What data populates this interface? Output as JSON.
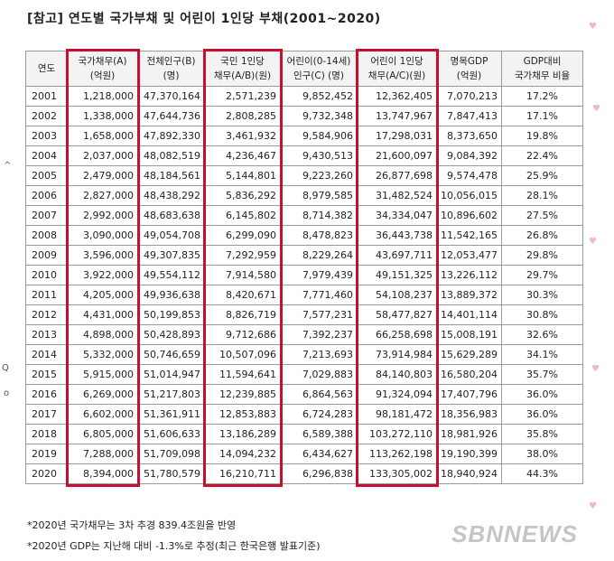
{
  "title": "[참고] 연도별 국가부채 및 어린이 1인당 부채(2001~2020)",
  "table": {
    "headers": [
      [
        "연도",
        ""
      ],
      [
        "국가채무(A)",
        "(억원)"
      ],
      [
        "전체인구(B)",
        "(명)"
      ],
      [
        "국민 1인당",
        "채무(A/B)(원)"
      ],
      [
        "어린이(0-14세)",
        "인구(C) (명)"
      ],
      [
        "어린이 1인당",
        "채무(A/C)(원)"
      ],
      [
        "명목GDP",
        "(억원)"
      ],
      [
        "GDP대비",
        "국가채무 비율"
      ]
    ],
    "rows": [
      [
        "2001",
        "1,218,000",
        "47,370,164",
        "2,571,239",
        "9,852,452",
        "12,362,405",
        "7,070,213",
        "17.2%"
      ],
      [
        "2002",
        "1,338,000",
        "47,644,736",
        "2,808,285",
        "9,732,348",
        "13,747,967",
        "7,847,413",
        "17.1%"
      ],
      [
        "2003",
        "1,658,000",
        "47,892,330",
        "3,461,932",
        "9,584,906",
        "17,298,031",
        "8,373,650",
        "19.8%"
      ],
      [
        "2004",
        "2,037,000",
        "48,082,519",
        "4,236,467",
        "9,430,513",
        "21,600,097",
        "9,084,392",
        "22.4%"
      ],
      [
        "2005",
        "2,479,000",
        "48,184,561",
        "5,144,801",
        "9,223,260",
        "26,877,698",
        "9,574,478",
        "25.9%"
      ],
      [
        "2006",
        "2,827,000",
        "48,438,292",
        "5,836,292",
        "8,979,585",
        "31,482,524",
        "10,056,015",
        "28.1%"
      ],
      [
        "2007",
        "2,992,000",
        "48,683,638",
        "6,145,802",
        "8,714,382",
        "34,334,047",
        "10,896,602",
        "27.5%"
      ],
      [
        "2008",
        "3,090,000",
        "49,054,708",
        "6,299,090",
        "8,478,823",
        "36,443,738",
        "11,542,165",
        "26.8%"
      ],
      [
        "2009",
        "3,596,000",
        "49,307,835",
        "7,292,959",
        "8,229,264",
        "43,697,711",
        "12,053,477",
        "29.8%"
      ],
      [
        "2010",
        "3,922,000",
        "49,554,112",
        "7,914,580",
        "7,979,439",
        "49,151,325",
        "13,226,112",
        "29.7%"
      ],
      [
        "2011",
        "4,205,000",
        "49,936,638",
        "8,420,671",
        "7,771,460",
        "54,108,237",
        "13,889,372",
        "30.3%"
      ],
      [
        "2012",
        "4,431,000",
        "50,199,853",
        "8,826,719",
        "7,577,231",
        "58,477,827",
        "14,401,114",
        "30.8%"
      ],
      [
        "2013",
        "4,898,000",
        "50,428,893",
        "9,712,686",
        "7,392,237",
        "66,258,698",
        "15,008,191",
        "32.6%"
      ],
      [
        "2014",
        "5,332,000",
        "50,746,659",
        "10,507,096",
        "7,213,693",
        "73,914,984",
        "15,629,289",
        "34.1%"
      ],
      [
        "2015",
        "5,915,000",
        "51,014,947",
        "11,594,641",
        "7,029,883",
        "84,140,803",
        "16,580,204",
        "35.7%"
      ],
      [
        "2016",
        "6,269,000",
        "51,217,803",
        "12,239,885",
        "6,864,563",
        "91,324,094",
        "17,407,796",
        "36.0%"
      ],
      [
        "2017",
        "6,602,000",
        "51,361,911",
        "12,853,883",
        "6,724,283",
        "98,181,472",
        "18,356,983",
        "36.0%"
      ],
      [
        "2018",
        "6,805,000",
        "51,606,633",
        "13,186,289",
        "6,589,388",
        "103,272,110",
        "18,981,926",
        "35.8%"
      ],
      [
        "2019",
        "7,288,000",
        "51,709,098",
        "14,094,232",
        "6,434,627",
        "113,262,198",
        "19,190,399",
        "38.0%"
      ],
      [
        "2020",
        "8,394,000",
        "51,780,579",
        "16,210,711",
        "6,296,838",
        "133,305,002",
        "18,940,924",
        "44.3%"
      ]
    ]
  },
  "notes": [
    "*2020년 국가채무는 3차 추경 839.4조원을 반영",
    "*2020년 GDP는 지난해 대비 -1.3%로 추정(최근 한국은행 발표기준)"
  ],
  "watermark": "SBNNEWS",
  "highlight_color": "#c8102e",
  "side_marks": [
    "^",
    "Q",
    "o"
  ],
  "decor_icon": "heart-icon"
}
